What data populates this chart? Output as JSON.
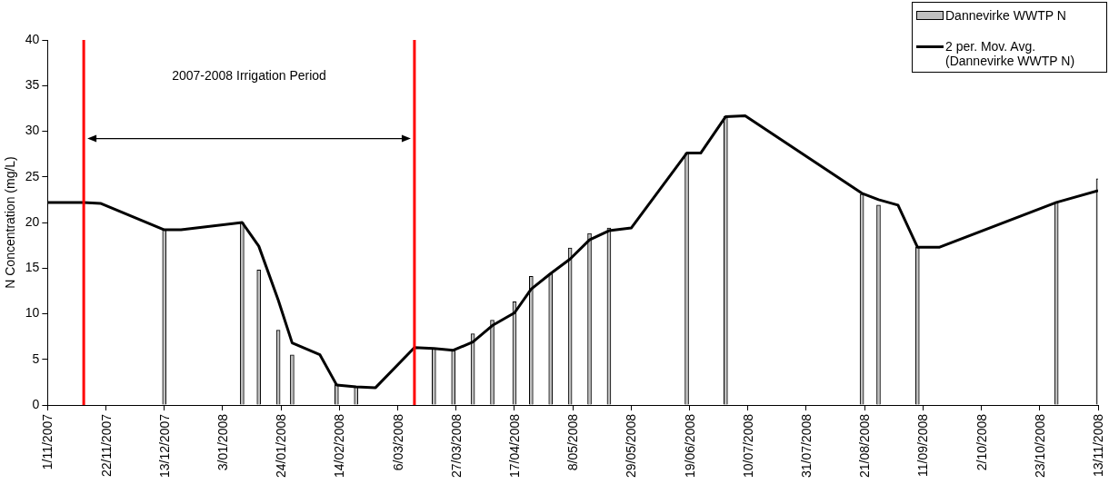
{
  "chart_data": {
    "type": "bar",
    "ylabel": "N Concentration (mg/L)",
    "annotations": [
      "2007-2008 Irrigation Period"
    ],
    "xlim": [
      "2007-11-01",
      "2008-11-13"
    ],
    "xticks": [
      {
        "value": "2007-11-01",
        "label": "1/11/2007"
      },
      {
        "value": "2007-11-22",
        "label": "22/11/2007"
      },
      {
        "value": "2007-12-13",
        "label": "13/12/2007"
      },
      {
        "value": "2008-01-03",
        "label": "3/01/2008"
      },
      {
        "value": "2008-01-24",
        "label": "24/01/2008"
      },
      {
        "value": "2008-02-14",
        "label": "14/02/2008"
      },
      {
        "value": "2008-03-06",
        "label": "6/03/2008"
      },
      {
        "value": "2008-03-27",
        "label": "27/03/2008"
      },
      {
        "value": "2008-04-17",
        "label": "17/04/2008"
      },
      {
        "value": "2008-05-08",
        "label": "8/05/2008"
      },
      {
        "value": "2008-05-29",
        "label": "29/05/2008"
      },
      {
        "value": "2008-06-19",
        "label": "19/06/2008"
      },
      {
        "value": "2008-07-10",
        "label": "10/07/2008"
      },
      {
        "value": "2008-07-31",
        "label": "31/07/2008"
      },
      {
        "value": "2008-08-21",
        "label": "21/08/2008"
      },
      {
        "value": "2008-09-11",
        "label": "11/09/2008"
      },
      {
        "value": "2008-10-02",
        "label": "2/10/2008"
      },
      {
        "value": "2008-10-23",
        "label": "23/10/2008"
      },
      {
        "value": "2008-11-13",
        "label": "13/11/2008"
      }
    ],
    "ylim": [
      0,
      40
    ],
    "yticks": [
      0,
      5,
      10,
      15,
      20,
      25,
      30,
      35,
      40
    ],
    "grid": false,
    "legend": "top right",
    "ref_lines": [
      {
        "axis": "x",
        "value": "2007-11-14",
        "color": "#ff0000"
      },
      {
        "axis": "x",
        "value": "2008-03-12",
        "color": "#ff0000"
      }
    ],
    "series": [
      {
        "name": "Dannevirke WWTP N",
        "color": "#c0c0c0",
        "x": [
          "2007-12-13",
          "2008-01-10",
          "2008-01-16",
          "2008-01-23",
          "2008-01-28",
          "2008-02-13",
          "2008-02-20",
          "2008-03-19",
          "2008-03-26",
          "2008-04-02",
          "2008-04-09",
          "2008-04-17",
          "2008-04-23",
          "2008-04-30",
          "2008-05-07",
          "2008-05-14",
          "2008-05-21",
          "2008-06-18",
          "2008-07-02",
          "2008-08-20",
          "2008-08-26",
          "2008-09-09",
          "2008-10-29",
          "2008-11-13"
        ],
        "values": [
          19.2,
          20.0,
          14.8,
          8.2,
          5.5,
          2.3,
          2.0,
          6.2,
          6.0,
          7.8,
          9.3,
          11.3,
          14.1,
          14.4,
          17.2,
          18.8,
          19.4,
          27.6,
          31.6,
          23.1,
          21.9,
          17.3,
          22.2,
          24.8
        ]
      },
      {
        "name": "2 per. Mov. Avg. (Dannevirke WWTP N)",
        "type": "line",
        "color": "#000000",
        "x": [
          "2007-11-01",
          "2007-11-14",
          "2007-11-20",
          "2007-12-13",
          "2007-12-19",
          "2008-01-10",
          "2008-01-16",
          "2008-01-23",
          "2008-01-28",
          "2008-02-07",
          "2008-02-13",
          "2008-02-20",
          "2008-02-27",
          "2008-03-12",
          "2008-03-19",
          "2008-03-26",
          "2008-04-02",
          "2008-04-09",
          "2008-04-17",
          "2008-04-23",
          "2008-04-30",
          "2008-05-07",
          "2008-05-14",
          "2008-05-21",
          "2008-05-29",
          "2008-06-18",
          "2008-06-23",
          "2008-07-02",
          "2008-07-09",
          "2008-08-20",
          "2008-08-26",
          "2008-09-02",
          "2008-09-09",
          "2008-09-17",
          "2008-10-29",
          "2008-11-13"
        ],
        "values": [
          22.2,
          22.2,
          22.1,
          19.2,
          19.2,
          20.0,
          17.4,
          11.5,
          6.8,
          5.5,
          2.2,
          2.0,
          1.9,
          6.3,
          6.2,
          6.0,
          6.9,
          8.7,
          10.1,
          12.7,
          14.4,
          16.0,
          18.1,
          19.1,
          19.4,
          27.6,
          27.6,
          31.6,
          31.7,
          23.2,
          22.5,
          21.9,
          17.3,
          17.3,
          22.2,
          23.5
        ]
      }
    ]
  }
}
